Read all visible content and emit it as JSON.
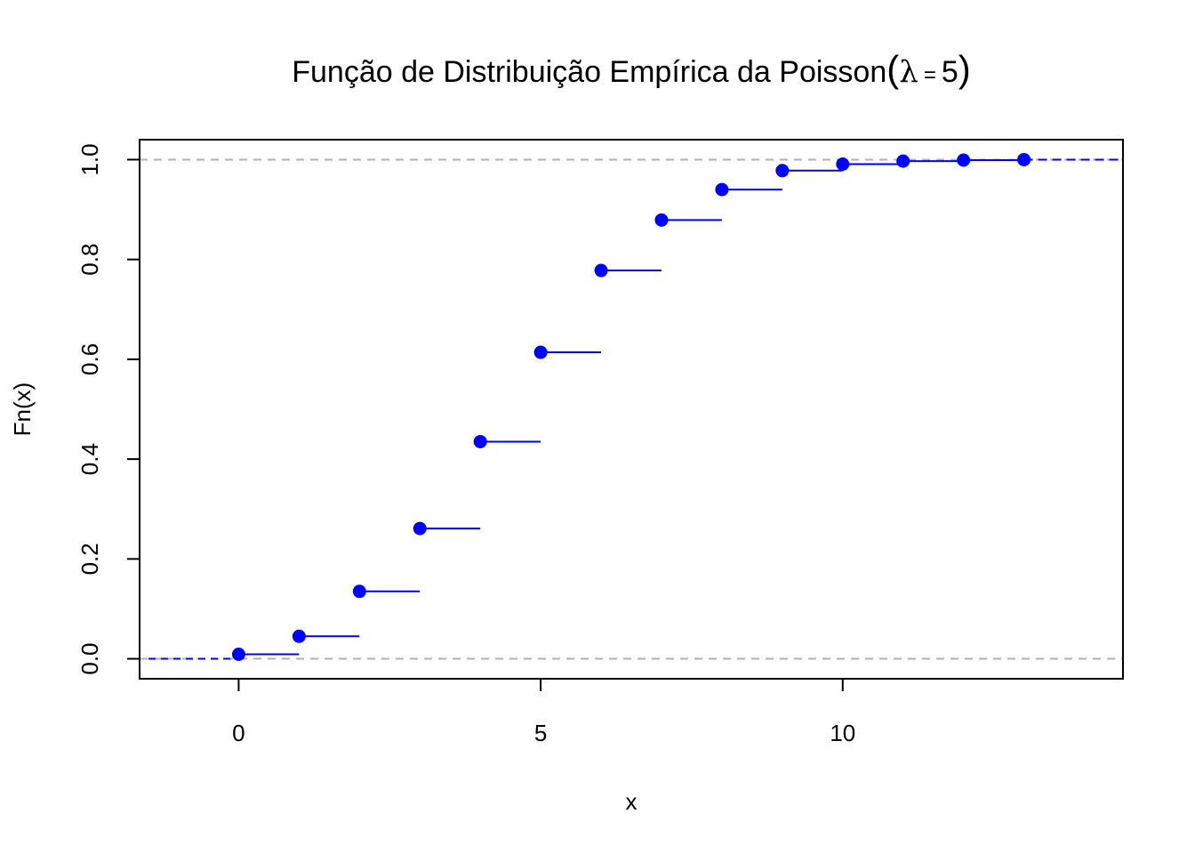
{
  "chart_data": {
    "type": "step",
    "title": {
      "prefix": "Função de Distribuição Empírica da Poisson",
      "open_paren": "(",
      "lambda_symbol": "λ",
      "equals": "=",
      "lambda_value": "5",
      "close_paren": ")"
    },
    "xlabel": "x",
    "ylabel": "Fn(x)",
    "xlim": [
      -1.64,
      14.64
    ],
    "ylim": [
      -0.04,
      1.04
    ],
    "x_ticks": [
      0,
      5,
      10
    ],
    "x_tick_labels": [
      "0",
      "5",
      "10"
    ],
    "y_ticks": [
      0.0,
      0.2,
      0.4,
      0.6,
      0.8,
      1.0
    ],
    "y_tick_labels": [
      "0.0",
      "0.2",
      "0.4",
      "0.6",
      "0.8",
      "1.0"
    ],
    "grid": false,
    "reference_lines": [
      0,
      1
    ],
    "series": [
      {
        "x": [
          0,
          1,
          2,
          3,
          4,
          5,
          6,
          7,
          8,
          9,
          10,
          11,
          12,
          13
        ],
        "y": [
          0.009,
          0.045,
          0.135,
          0.261,
          0.435,
          0.614,
          0.778,
          0.879,
          0.94,
          0.978,
          0.991,
          0.997,
          0.999,
          1.0
        ]
      }
    ],
    "colors": {
      "series": "#0000ff",
      "reference": "#b3b3b3",
      "axis": "#000000"
    }
  }
}
